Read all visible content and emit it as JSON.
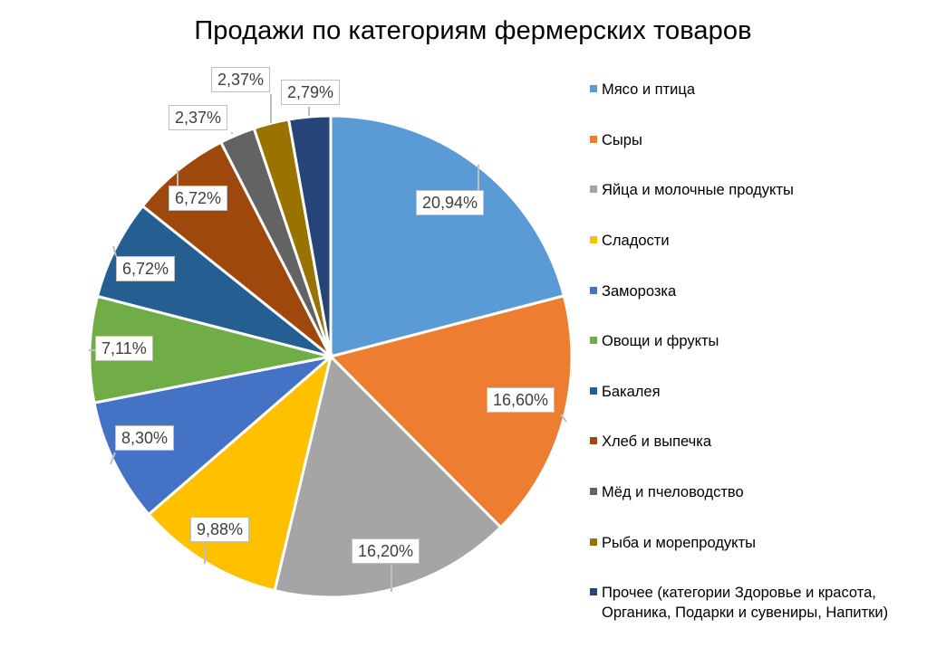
{
  "chart_data": {
    "type": "pie",
    "title": "Продажи по категориям фермерских товаров",
    "start_angle_deg": 0,
    "direction": "clockwise",
    "legend_position": "right",
    "categories": [
      "Мясо и птица",
      "Сыры",
      "Яйца и молочные продукты",
      "Сладости",
      "Заморозка",
      "Овощи и фрукты",
      "Бакалея",
      "Хлеб и выпечка",
      "Мёд и пчеловодство",
      "Рыба и морепродукты",
      "Прочее (категории Здоровье и красота, Органика, Подарки и сувениры, Напитки)"
    ],
    "values": [
      20.94,
      16.6,
      16.2,
      9.88,
      8.3,
      7.11,
      6.72,
      6.72,
      2.37,
      2.37,
      2.79
    ],
    "labels": [
      "20,94%",
      "16,60%",
      "16,20%",
      "9,88%",
      "8,30%",
      "7,11%",
      "6,72%",
      "6,72%",
      "2,37%",
      "2,37%",
      "2,79%"
    ],
    "colors": [
      "#5B9BD5",
      "#ED7D31",
      "#A5A5A5",
      "#FFC000",
      "#4472C4",
      "#70AD47",
      "#255E91",
      "#9E480E",
      "#636363",
      "#997300",
      "#264478"
    ],
    "unit": "%"
  },
  "legend": {
    "items": [
      {
        "label": "Мясо и птица"
      },
      {
        "label": "Сыры"
      },
      {
        "label": "Яйца и молочные продукты"
      },
      {
        "label": "Сладости"
      },
      {
        "label": "Заморозка"
      },
      {
        "label": "Овощи и фрукты"
      },
      {
        "label": "Бакалея"
      },
      {
        "label": "Хлеб и выпечка"
      },
      {
        "label": "Мёд и пчеловодство"
      },
      {
        "label": "Рыба и морепродукты"
      },
      {
        "label": "Прочее (категории Здоровье и красота,",
        "label2": "Органика, Подарки и сувениры, Напитки)"
      }
    ]
  }
}
